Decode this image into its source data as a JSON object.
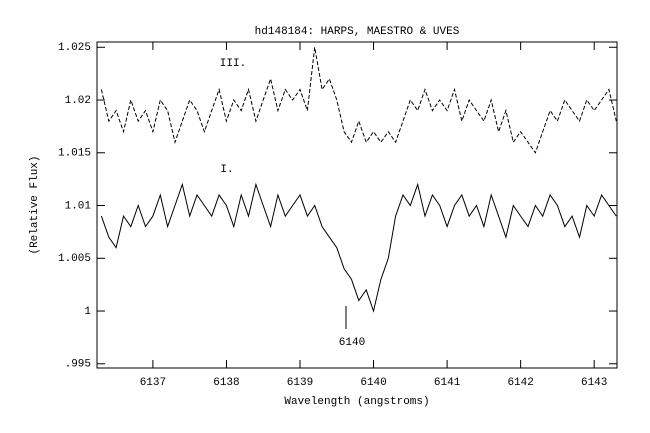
{
  "chart_data": {
    "type": "line",
    "title": "hd148184: HARPS, MAESTRO & UVES",
    "x_label": "Wavelength (angstroms)",
    "y_label": "(Relative Flux)",
    "annotation": "6140",
    "xlim": [
      6136.24,
      6143.31
    ],
    "ylim": [
      0.9946,
      1.0255
    ],
    "xticks": [
      6137,
      6138,
      6139,
      6140,
      6141,
      6142,
      6143
    ],
    "yticks": [
      1.025,
      1.02,
      1.015,
      1.01,
      1.005,
      1,
      {
        "value": 0.995,
        "label": ".995"
      }
    ],
    "x": [
      6136.3,
      6136.4,
      6136.5,
      6136.6,
      6136.7,
      6136.8,
      6136.9,
      6137.0,
      6137.1,
      6137.2,
      6137.3,
      6137.4,
      6137.5,
      6137.6,
      6137.7,
      6137.8,
      6137.9,
      6138.0,
      6138.1,
      6138.2,
      6138.3,
      6138.4,
      6138.5,
      6138.6,
      6138.7,
      6138.8,
      6138.9,
      6139.0,
      6139.1,
      6139.2,
      6139.3,
      6139.4,
      6139.5,
      6139.6,
      6139.7,
      6139.8,
      6139.9,
      6140.0,
      6140.1,
      6140.2,
      6140.3,
      6140.4,
      6140.5,
      6140.6,
      6140.7,
      6140.8,
      6140.9,
      6141.0,
      6141.1,
      6141.2,
      6141.3,
      6141.4,
      6141.5,
      6141.6,
      6141.7,
      6141.8,
      6141.9,
      6142.0,
      6142.1,
      6142.2,
      6142.3,
      6142.4,
      6142.5,
      6142.6,
      6142.7,
      6142.8,
      6142.9,
      6143.0,
      6143.1,
      6143.2,
      6143.3
    ],
    "series": [
      {
        "name": "III.",
        "color": "#000000",
        "dashed": true,
        "values": [
          1.021,
          1.018,
          1.019,
          1.017,
          1.02,
          1.018,
          1.019,
          1.017,
          1.02,
          1.019,
          1.016,
          1.018,
          1.02,
          1.019,
          1.017,
          1.019,
          1.021,
          1.018,
          1.02,
          1.019,
          1.021,
          1.018,
          1.02,
          1.022,
          1.019,
          1.021,
          1.02,
          1.021,
          1.019,
          1.025,
          1.021,
          1.022,
          1.02,
          1.017,
          1.016,
          1.018,
          1.016,
          1.017,
          1.016,
          1.017,
          1.016,
          1.018,
          1.02,
          1.019,
          1.021,
          1.019,
          1.02,
          1.019,
          1.021,
          1.018,
          1.02,
          1.019,
          1.018,
          1.02,
          1.017,
          1.019,
          1.016,
          1.017,
          1.016,
          1.015,
          1.017,
          1.019,
          1.018,
          1.02,
          1.019,
          1.018,
          1.02,
          1.019,
          1.02,
          1.021,
          1.018
        ]
      },
      {
        "name": "I.",
        "color": "#000000",
        "dashed": false,
        "values": [
          1.009,
          1.007,
          1.006,
          1.009,
          1.008,
          1.01,
          1.008,
          1.009,
          1.011,
          1.008,
          1.01,
          1.012,
          1.009,
          1.011,
          1.01,
          1.009,
          1.011,
          1.01,
          1.008,
          1.011,
          1.009,
          1.012,
          1.01,
          1.008,
          1.011,
          1.009,
          1.01,
          1.011,
          1.009,
          1.01,
          1.008,
          1.007,
          1.006,
          1.004,
          1.003,
          1.001,
          1.002,
          1.0,
          1.003,
          1.005,
          1.009,
          1.011,
          1.01,
          1.012,
          1.009,
          1.011,
          1.01,
          1.008,
          1.01,
          1.011,
          1.009,
          1.01,
          1.008,
          1.011,
          1.009,
          1.007,
          1.01,
          1.009,
          1.008,
          1.01,
          1.009,
          1.011,
          1.01,
          1.008,
          1.009,
          1.007,
          1.01,
          1.009,
          1.011,
          1.01,
          1.009
        ]
      }
    ]
  }
}
